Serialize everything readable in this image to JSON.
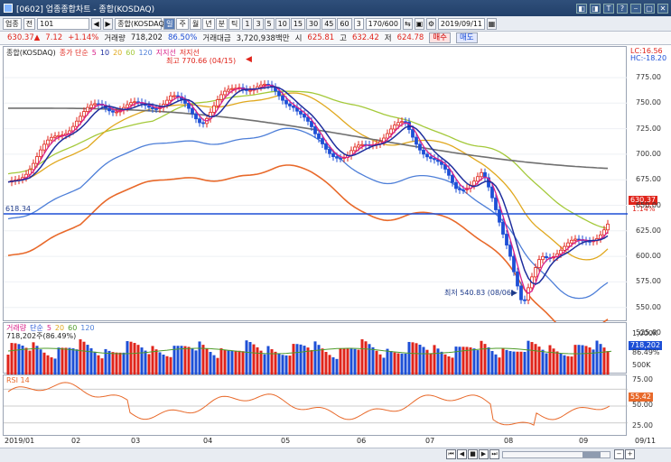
{
  "window": {
    "title": "[0602] 업종종합차트 - 종합(KOSDAQ)",
    "buttons": [
      "◧",
      "◨",
      "T",
      "?",
      "⎯",
      "▢",
      "✕"
    ]
  },
  "toolbar": {
    "market": "업종",
    "mode": "전",
    "code": "101",
    "name": "종합(KOSDAQ)",
    "periods": [
      "일",
      "주",
      "월",
      "년",
      "분",
      "틱"
    ],
    "minutes": [
      "1",
      "3",
      "5",
      "10",
      "15",
      "30",
      "45",
      "60"
    ],
    "interval": "3",
    "count": "170/600",
    "date": "2019/09/11"
  },
  "quote": {
    "price": "630.37▲",
    "change": "7.12",
    "change_pct": "+1.14%",
    "volume_label": "거래량",
    "volume": "718,202",
    "volume_pct": "86.50%",
    "amount_label": "거래대금",
    "amount": "3,720,938백만",
    "open_label": "시",
    "open": "625.81",
    "high_label": "고",
    "high": "632.42",
    "low_label": "저",
    "low": "624.78",
    "buy": "매수",
    "sell": "매도"
  },
  "price_panel": {
    "legend": [
      "종합(KOSDAQ)",
      "종가 단순",
      "5",
      "10",
      "20",
      "60",
      "120",
      "지지선",
      "저지선"
    ],
    "high_note": "최고 770.66 (04/15)",
    "low_note": "최저 540.83 (08/06)",
    "line_label": "618.34",
    "corner": [
      "LC:16.56",
      "HC:-18.20"
    ],
    "price_tag": "630.37",
    "pct_tag": "1.14%",
    "axis_ticks": [
      "775.00",
      "750.00",
      "725.00",
      "700.00",
      "675.00",
      "650.00",
      "625.00",
      "600.00",
      "575.00",
      "550.00",
      "525.00"
    ]
  },
  "volume_panel": {
    "legend": [
      "거래량",
      "단순",
      "5",
      "20",
      "60",
      "120"
    ],
    "value": "718,202주(86.49%)",
    "axis_ticks": [
      "1,000K",
      "500K"
    ],
    "value_tag": "718,202",
    "pct_tag": "86.49%"
  },
  "rsi_panel": {
    "legend": "RSI 14",
    "axis_ticks": [
      "75.00",
      "50.00",
      "25.00"
    ],
    "value_tag": "55.42"
  },
  "x_axis": {
    "labels": [
      "2019/01",
      "02",
      "03",
      "04",
      "05",
      "06",
      "07",
      "08",
      "09"
    ],
    "end": "09/11"
  },
  "colors": {
    "up": "#e0241b",
    "down": "#1d4fd6",
    "ma5": "#d9208a",
    "ma10": "#1f2f9e",
    "ma20": "#e0a81e",
    "ma60": "#a4c93a",
    "ma120": "#4e7fd8",
    "ma240": "#707070",
    "env": "#e8692a"
  }
}
